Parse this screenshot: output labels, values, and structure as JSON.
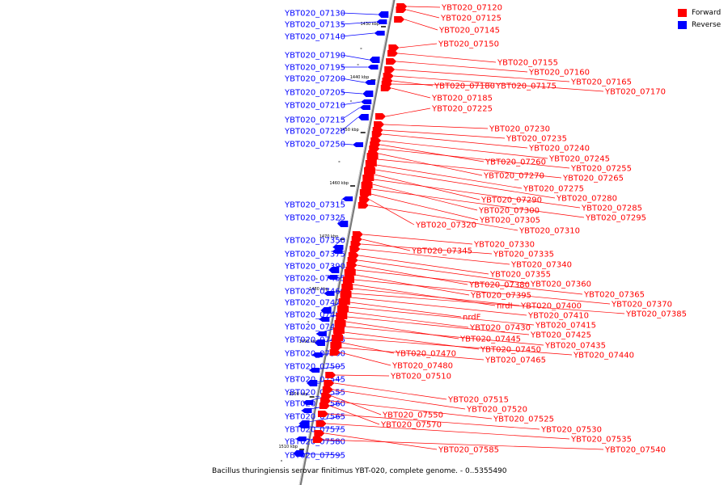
{
  "legend": {
    "forward": {
      "label": "Forward",
      "color": "#ff0000"
    },
    "reverse": {
      "label": "Reverse",
      "color": "#0000ff"
    }
  },
  "caption": "Bacillus thuringiensis serovar finitimus YBT-020, complete genome. - 0..5355490",
  "axis_ticks": [
    "1430 kbp",
    "1440 kbp",
    "1450 kbp",
    "1460 kbp",
    "1470 kbp",
    "1480 kbp",
    "1490 kbp",
    "1500 kbp",
    "1510 kbp"
  ],
  "reverse_genes": [
    "YBT020_07130",
    "YBT020_07135",
    "YBT020_07140",
    "YBT020_07190",
    "YBT020_07195",
    "YBT020_07200",
    "YBT020_07205",
    "YBT020_07210",
    "YBT020_07215",
    "YBT020_07220",
    "YBT020_07250",
    "YBT020_07315",
    "YBT020_07325",
    "YBT020_07350",
    "YBT020_07375",
    "YBT020_07390",
    "YBT020_07455",
    "YBT020_07460",
    "YBT020_07475",
    "YBT020_07485",
    "YBT020_07490",
    "YBT020_07495",
    "YBT020_07500",
    "YBT020_07505",
    "YBT020_07545",
    "YBT020_07555",
    "YBT020_07560",
    "YBT020_07565",
    "YBT020_07575",
    "YBT020_07580",
    "YBT020_07595"
  ],
  "forward_genes": [
    "YBT020_07120",
    "YBT020_07125",
    "YBT020_07145",
    "YBT020_07150",
    "YBT020_07155",
    "YBT020_07160",
    "YBT020_07165",
    "YBT020_07170",
    "YBT020_07180",
    "YBT020_07175",
    "YBT020_07185",
    "YBT020_07225",
    "YBT020_07230",
    "YBT020_07235",
    "YBT020_07240",
    "YBT020_07245",
    "YBT020_07260",
    "YBT020_07255",
    "YBT020_07270",
    "YBT020_07265",
    "YBT020_07275",
    "YBT020_07280",
    "YBT020_07290",
    "YBT020_07285",
    "YBT020_07300",
    "YBT020_07295",
    "YBT020_07305",
    "YBT020_07320",
    "YBT020_07310",
    "YBT020_07330",
    "YBT020_07345",
    "YBT020_07335",
    "YBT020_07340",
    "YBT020_07355",
    "YBT020_07360",
    "YBT020_07380",
    "YBT020_07365",
    "YBT020_07395",
    "YBT020_07370",
    "nrdI",
    "YBT020_07400",
    "YBT020_07385",
    "YBT020_07410",
    "nrdF",
    "YBT020_07415",
    "YBT020_07430",
    "YBT020_07425",
    "YBT020_07445",
    "YBT020_07435",
    "YBT020_07450",
    "YBT020_07440",
    "YBT020_07470",
    "YBT020_07465",
    "YBT020_07480",
    "YBT020_07510",
    "YBT020_07515",
    "YBT020_07520",
    "YBT020_07550",
    "YBT020_07525",
    "YBT020_07570",
    "YBT020_07530",
    "YBT020_07535",
    "YBT020_07585",
    "YBT020_07540"
  ]
}
